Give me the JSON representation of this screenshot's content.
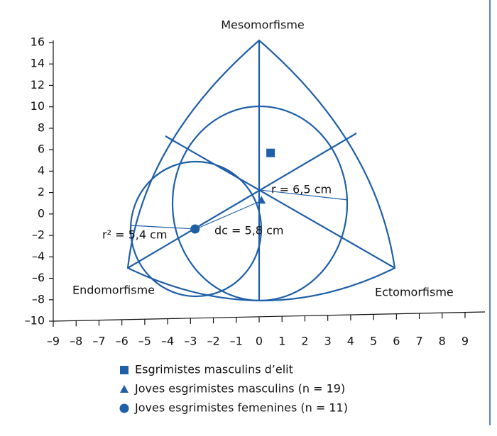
{
  "chart_data": {
    "type": "scatter",
    "annotations": [
      "Mesomorfisme",
      "Endomorfisme",
      "Ectomorfisme",
      "r = 6,5 cm",
      "r² = 5,4 cm",
      "dc = 5,8 cm"
    ],
    "xlim": [
      -9,
      9
    ],
    "xticks": [
      {
        "value": -9,
        "label": "–9"
      },
      {
        "value": -8,
        "label": "–8"
      },
      {
        "value": -7,
        "label": "–7"
      },
      {
        "value": -6,
        "label": "–6"
      },
      {
        "value": -5,
        "label": "–5"
      },
      {
        "value": -4,
        "label": "–4"
      },
      {
        "value": -3,
        "label": "–3"
      },
      {
        "value": -2,
        "label": "–2"
      },
      {
        "value": -1,
        "label": "–1"
      },
      0,
      1,
      2,
      3,
      4,
      5,
      6,
      7,
      8,
      9
    ],
    "ylim": [
      -10,
      16
    ],
    "yticks": [
      {
        "value": -10,
        "label": "–10"
      },
      {
        "value": -8,
        "label": "–8"
      },
      {
        "value": -6,
        "label": "–6"
      },
      {
        "value": -4,
        "label": "–4"
      },
      {
        "value": -2,
        "label": "–2"
      },
      0,
      2,
      4,
      6,
      8,
      10,
      12,
      14,
      16
    ],
    "series": [
      {
        "name": "Esgrimistes masculins d’elit",
        "color": "#1f5fa8",
        "marker": "square",
        "x": [
          0.5
        ],
        "y": [
          5.7
        ]
      },
      {
        "name": "Joves esgrimistes masculins (n = 19)",
        "color": "#1f5fa8",
        "marker": "triangle",
        "x": [
          0.1
        ],
        "y": [
          1.3
        ]
      },
      {
        "name": "Joves esgrimistes femenines (n = 11)",
        "color": "#1f5fa8",
        "marker": "circle",
        "x": [
          -2.8
        ],
        "y": [
          -1.4
        ]
      }
    ]
  }
}
